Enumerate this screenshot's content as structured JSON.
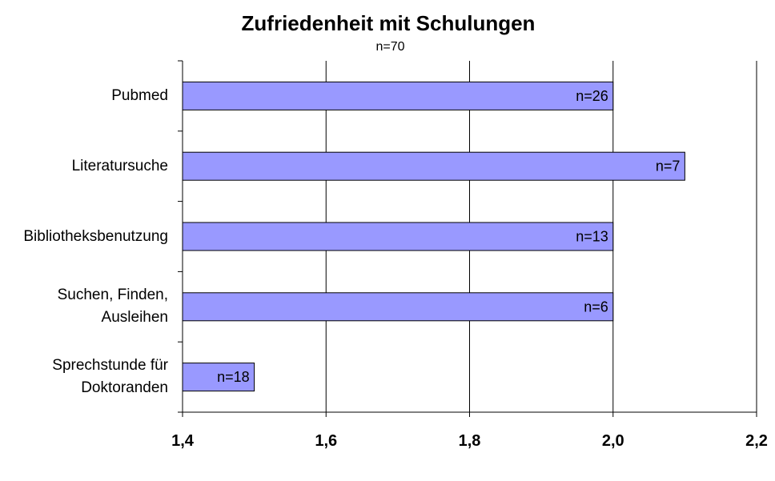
{
  "chart_data": {
    "type": "bar",
    "orientation": "horizontal",
    "title": "Zufriedenheit mit Schulungen",
    "subtitle": "n=70",
    "categories": [
      "Pubmed",
      "Literatursuche",
      "Bibliotheksbenutzung",
      "Suchen, Finden, Ausleihen",
      "Sprechstunde für Doktoranden"
    ],
    "category_lines": [
      [
        "Pubmed"
      ],
      [
        "Literatursuche"
      ],
      [
        "Bibliotheksbenutzung"
      ],
      [
        "Suchen, Finden,",
        "Ausleihen"
      ],
      [
        "Sprechstunde für",
        "Doktoranden"
      ]
    ],
    "values": [
      2.0,
      2.1,
      2.0,
      2.0,
      1.5
    ],
    "data_labels": [
      "n=26",
      "n=7",
      "n=13",
      "n=6",
      "n=18"
    ],
    "xlim": [
      1.4,
      2.2
    ],
    "xticks": [
      "1,4",
      "1,6",
      "1,8",
      "2,0",
      "2,2"
    ],
    "xtick_values": [
      1.4,
      1.6,
      1.8,
      2.0,
      2.2
    ],
    "grid": "vertical",
    "legend": "none",
    "colors": {
      "bar_fill": "#9999ff",
      "bar_stroke": "#000000",
      "grid": "#000000"
    }
  }
}
